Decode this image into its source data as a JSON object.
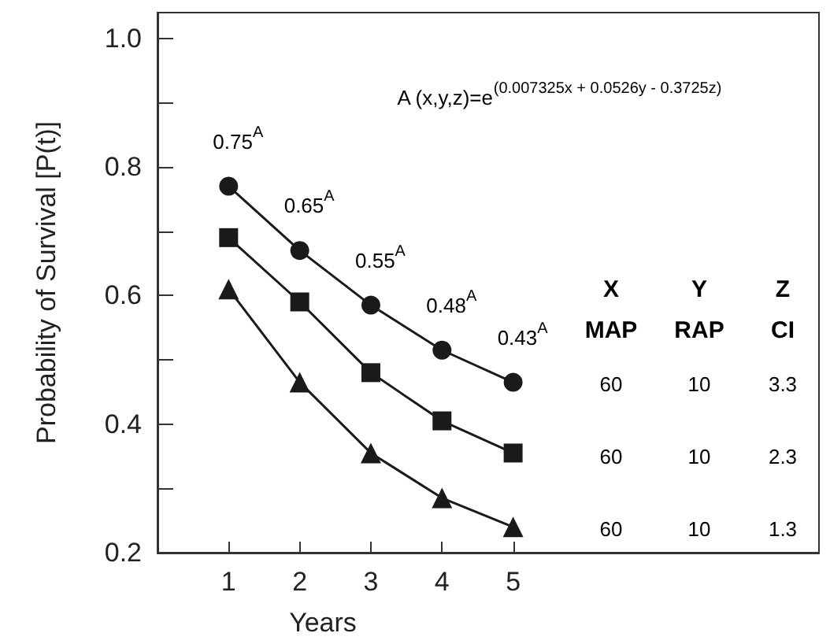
{
  "chart_data": {
    "type": "line",
    "xlabel": "Years",
    "ylabel": "Probability of Survival [P(t)]",
    "x": [
      1,
      2,
      3,
      4,
      5
    ],
    "series": [
      {
        "color": "#1a1a1a",
        "marker": "circle",
        "values": [
          0.77,
          0.67,
          0.585,
          0.515,
          0.465
        ]
      },
      {
        "color": "#1a1a1a",
        "marker": "square",
        "values": [
          0.69,
          0.59,
          0.48,
          0.405,
          0.355
        ]
      },
      {
        "color": "#1a1a1a",
        "marker": "triangle",
        "values": [
          0.61,
          0.465,
          0.355,
          0.285,
          0.24
        ]
      }
    ],
    "xlim": [
      0,
      9.3
    ],
    "xticks": [
      1,
      2,
      3,
      4,
      5
    ],
    "ylim": [
      0.2,
      1.04
    ],
    "yticks": [
      0.2,
      {
        "value": 0.3,
        "label": null
      },
      0.4,
      {
        "value": 0.5,
        "label": null
      },
      0.6,
      {
        "value": 0.7,
        "label": null
      },
      0.8,
      {
        "value": 0.9,
        "label": null
      },
      {
        "value": 1.0,
        "label": "1.0"
      }
    ],
    "grid": false,
    "line_style": "solid",
    "annotations": [
      {
        "text": "0.75$^{A}$",
        "x": 1,
        "y": 0.77
      },
      {
        "text": "0.65$^{A}$",
        "x": 2,
        "y": 0.67
      },
      {
        "text": "0.55$^{A}$",
        "x": 3,
        "y": 0.585
      },
      {
        "text": "0.48$^{A}$",
        "x": 4,
        "y": 0.515
      },
      {
        "text": "0.43$^{A}$",
        "x": 5,
        "y": 0.465
      },
      "A (x,y,z)=e$^{(0.007325x + 0.0526y - 0.3725z)}$",
      "X",
      "Y",
      "Z",
      "MAP",
      "RAP",
      "CI",
      "60",
      "10",
      "3.3",
      "60",
      "10",
      "2.3",
      "60",
      "10",
      "1.3"
    ]
  }
}
